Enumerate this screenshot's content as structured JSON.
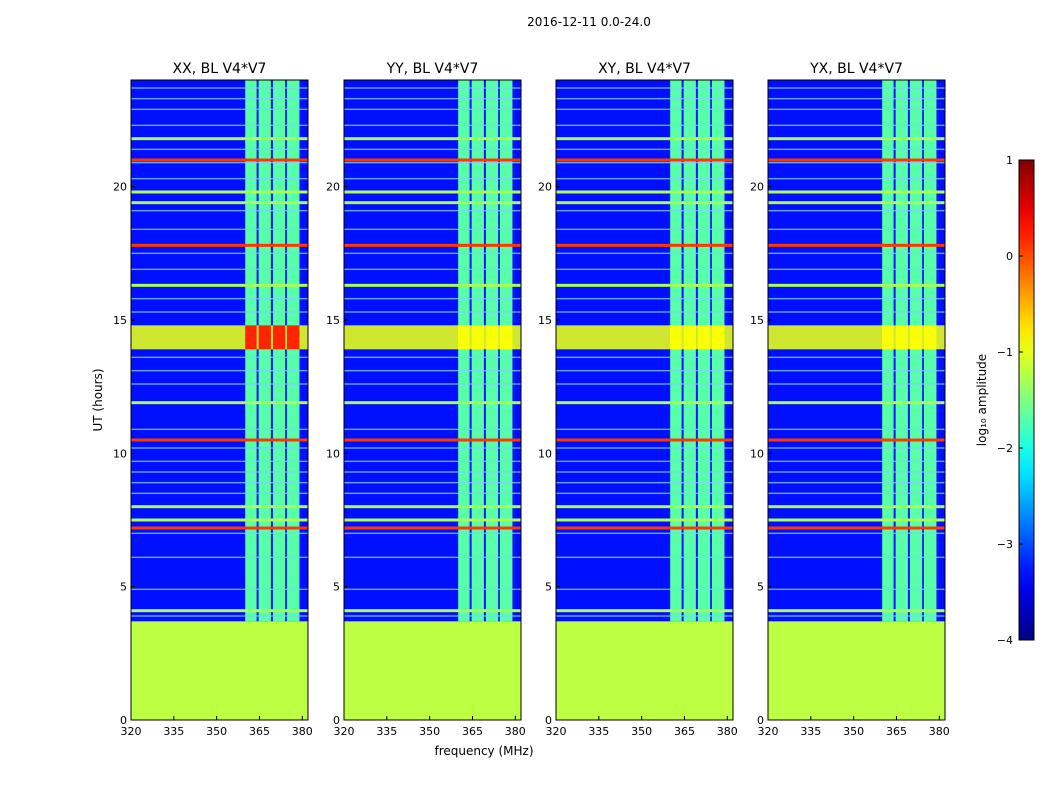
{
  "figure": {
    "suptitle": "2016-12-11 0.0-24.0",
    "xlabel": "frequency (MHz)",
    "ylabel": "UT (hours)"
  },
  "chart_data": {
    "type": "heatmap",
    "panels": [
      {
        "title": "XX, BL V4*V7",
        "strong_event": "red"
      },
      {
        "title": "YY, BL V4*V7",
        "strong_event": "yellow"
      },
      {
        "title": "XY, BL V4*V7",
        "strong_event": "yellow"
      },
      {
        "title": "YX, BL V4*V7",
        "strong_event": "yellow"
      }
    ],
    "xlim": [
      320,
      382
    ],
    "xticks": [
      320,
      335,
      350,
      365,
      380
    ],
    "ylim": [
      0,
      24
    ],
    "yticks": [
      0,
      5,
      10,
      15,
      20
    ],
    "no_data_until_ut": 3.7,
    "no_data_value": -1.2,
    "background_value": -3.3,
    "rfi_band_mhz": [
      [
        360,
        364
      ],
      [
        364.7,
        369
      ],
      [
        369.7,
        374
      ],
      [
        374.6,
        379
      ]
    ],
    "rfi_band_value": -1.7,
    "flare_ut": [
      13.9,
      14.8
    ],
    "flare_value_red": 0.2,
    "flare_value_yellow": -0.9,
    "bright_horizontal_lines_ut": [
      4.1,
      7.2,
      7.5,
      8.0,
      10.5,
      11.9,
      16.3,
      17.8,
      19.4,
      19.8,
      21.0,
      21.8
    ],
    "faint_horizontal_lines_ut": [
      3.9,
      4.9,
      6.1,
      7.0,
      8.5,
      8.9,
      9.3,
      9.7,
      10.2,
      10.9,
      12.6,
      13.1,
      13.6,
      15.3,
      15.8,
      16.9,
      17.5,
      18.4,
      19.1,
      20.3,
      20.9,
      21.4,
      22.3,
      22.9,
      23.3,
      23.7
    ],
    "colorbar": {
      "label": "log₁₀ amplitude",
      "ticks": [
        1,
        0,
        -1,
        -2,
        -3,
        -4
      ],
      "tick_labels": [
        "1",
        "0",
        "−1",
        "−2",
        "−3",
        "−4"
      ],
      "range": [
        -4,
        1
      ],
      "colormap": "jet"
    }
  }
}
